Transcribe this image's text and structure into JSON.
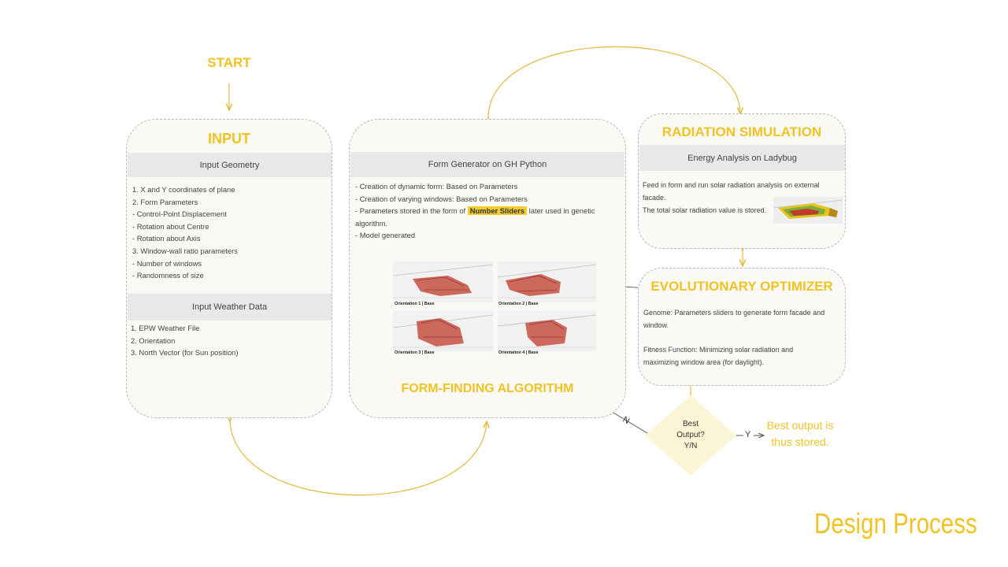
{
  "start_label": "START",
  "input": {
    "title": "INPUT",
    "geometry_header": "Input Geometry",
    "geometry_items": [
      "1. X and Y coordinates of plane",
      "2. Form Parameters",
      "- Control-Point Displacement",
      "- Rotation about Centre",
      "- Rotation about Axis",
      "3. Window-wall ratio parameters",
      "- Number of windows",
      "- Randomness of size"
    ],
    "weather_header": "Input Weather Data",
    "weather_items": [
      "1. EPW Weather File",
      "2. Orientation",
      "3. North Vector (for Sun position)"
    ]
  },
  "form": {
    "header": "Form Generator on GH Python",
    "item1": "- Creation of dynamic form: Based on Parameters",
    "item2": "- Creation of varying windows: Based on Parameters",
    "item3_pre": "- Parameters stored in the form of ",
    "item3_hl": "Number Sliders",
    "item3_post": " later used in genetic",
    "item3_cont": "algorithm.",
    "item4": "- Model generated",
    "orientations": [
      "Orientation 1 | Base",
      "Orientation 2 | Base",
      "Orientation 3 | Base",
      "Orientation 4 | Base"
    ],
    "title": "FORM-FINDING ALGORITHM"
  },
  "radiation": {
    "title": "RADIATION SIMULATION",
    "header": "Energy Analysis on Ladybug",
    "line1": "Feed in form and run solar radiation analysis on external",
    "line2": "facade.",
    "line3": "The total solar radiation value is stored."
  },
  "optimizer": {
    "title": "EVOLUTIONARY OPTIMIZER",
    "genome_1": "Genome: Parameters sliders to generate form facade and",
    "genome_2": "window.",
    "fitness_1": "Fitness Function: Minimizing solar radiation and",
    "fitness_2": "maximizing window area (for daylight)."
  },
  "decision": {
    "line1": "Best",
    "line2": "Output?",
    "line3": "Y/N",
    "no_label": "N",
    "yes_label": "Y",
    "result_1": "Best output is",
    "result_2": "thus stored."
  },
  "footer": {
    "word1": "Design",
    "word2": "Process"
  },
  "colors": {
    "accent": "#f0c224",
    "panel_fill": "#faf9f5",
    "header_band": "#e8e8e8",
    "border": "#b9b9b9",
    "model_red": "#c0392b"
  }
}
